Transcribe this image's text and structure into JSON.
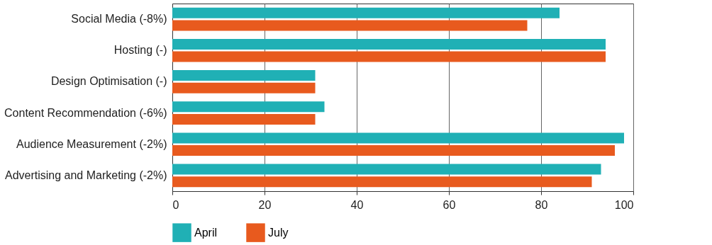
{
  "chart_data": {
    "type": "bar",
    "orientation": "horizontal",
    "categories": [
      "Social Media (-8%)",
      "Hosting (-)",
      "Design Optimisation (-)",
      "Content Recommendation (-6%)",
      "Audience Measurement (-2%)",
      "Advertising and Marketing (-2%)"
    ],
    "series": [
      {
        "name": "April",
        "color": "#20b0b5",
        "values": [
          84,
          94,
          31,
          33,
          98,
          93
        ]
      },
      {
        "name": "July",
        "color": "#e85a1e",
        "values": [
          77,
          94,
          31,
          31,
          96,
          91
        ]
      }
    ],
    "xlim": [
      0,
      100
    ],
    "xticks": [
      0,
      20,
      40,
      60,
      80,
      100
    ],
    "grid": "x",
    "legend": "bottom"
  }
}
